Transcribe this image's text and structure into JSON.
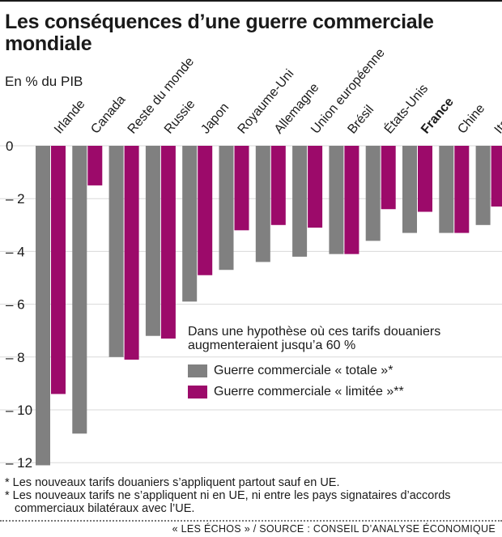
{
  "header": {
    "title": "Les conséquences d’une guerre commerciale mondiale",
    "unit": "En % du PIB"
  },
  "legend": {
    "title": "Dans une hypothèse où ces tarifs douaniers augmenteraient jusqu’a 60 %",
    "items": [
      {
        "label": "Guerre commerciale « totale »*",
        "color": "#808080"
      },
      {
        "label": "Guerre commerciale « limitée »**",
        "color": "#9c0a6a"
      }
    ]
  },
  "notes": [
    "* Les nouveaux tarifs douaniers s’appliquent partout sauf en UE.",
    "* Les nouveaux tarifs ne s’appliquent ni en UE, ni entre les pays signataires d’accords commerciaux bilatéraux avec l’UE."
  ],
  "credit": "« LES ÉCHOS »  / SOURCE : CONSEIL D’ANALYSE ÉCONOMIQUE",
  "chart_data": {
    "type": "bar",
    "title": "Les conséquences d’une guerre commerciale mondiale",
    "ylabel": "En % du PIB",
    "ylim": [
      -12,
      0
    ],
    "yticks": [
      0,
      -2,
      -4,
      -6,
      -8,
      -10,
      -12
    ],
    "ytick_labels": [
      "0",
      "– 2",
      "– 4",
      "– 6",
      "– 8",
      "– 10",
      "– 12"
    ],
    "grid": true,
    "highlight_category": "France",
    "categories": [
      "Irlande",
      "Canada",
      "Reste du monde",
      "Russie",
      "Japon",
      "Royaume-Uni",
      "Allemagne",
      "Union européenne",
      "Brésil",
      "États-Unis",
      "France",
      "Chine",
      "Italie"
    ],
    "series": [
      {
        "name": "Guerre commerciale « totale »*",
        "color": "#808080",
        "values": [
          -12.1,
          -10.9,
          -8.0,
          -7.2,
          -5.9,
          -4.7,
          -4.4,
          -4.2,
          -4.1,
          -3.6,
          -3.3,
          -3.3,
          -3.0
        ]
      },
      {
        "name": "Guerre commerciale « limitée »**",
        "color": "#9c0a6a",
        "values": [
          -9.4,
          -1.5,
          -8.1,
          -7.3,
          -4.9,
          -3.2,
          -3.0,
          -3.1,
          -4.1,
          -2.4,
          -2.5,
          -3.3,
          -2.3
        ]
      }
    ]
  }
}
